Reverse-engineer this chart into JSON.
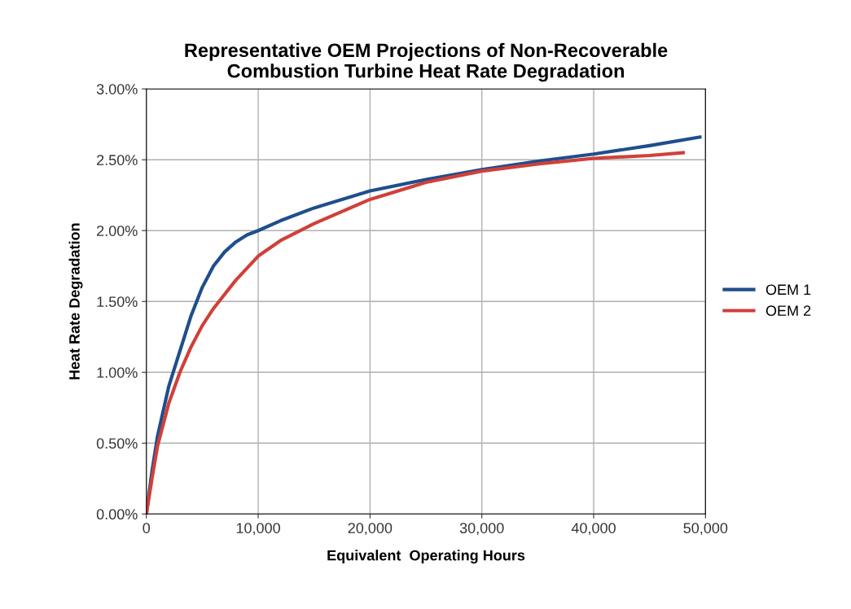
{
  "chart_data": {
    "type": "line",
    "title": "Representative OEM Projections of Non-Recoverable\nCombustion Turbine Heat Rate Degradation",
    "xlabel": "Equivalent  Operating Hours",
    "ylabel": "Heat Rate Degradation",
    "series": [
      {
        "name": "OEM 1",
        "color": "#1f4e8c",
        "x": [
          0,
          500,
          1000,
          2000,
          3000,
          4000,
          5000,
          6000,
          7000,
          8000,
          9000,
          10000,
          12000,
          15000,
          20000,
          25000,
          30000,
          35000,
          40000,
          45000,
          49500
        ],
        "values": [
          0,
          0.3,
          0.55,
          0.9,
          1.15,
          1.4,
          1.6,
          1.75,
          1.85,
          1.92,
          1.97,
          2.0,
          2.07,
          2.16,
          2.28,
          2.36,
          2.43,
          2.49,
          2.54,
          2.6,
          2.66
        ]
      },
      {
        "name": "OEM 2",
        "color": "#d0403a",
        "x": [
          0,
          500,
          1000,
          2000,
          3000,
          4000,
          5000,
          6000,
          7000,
          8000,
          10000,
          12000,
          15000,
          20000,
          25000,
          30000,
          35000,
          40000,
          45000,
          48000
        ],
        "values": [
          0,
          0.25,
          0.48,
          0.78,
          1.0,
          1.18,
          1.33,
          1.45,
          1.55,
          1.65,
          1.82,
          1.93,
          2.05,
          2.22,
          2.34,
          2.42,
          2.47,
          2.51,
          2.53,
          2.55
        ]
      }
    ],
    "xlim": [
      0,
      50000
    ],
    "xticks": [
      0,
      {
        "value": 10000,
        "label": "10,000"
      },
      {
        "value": 20000,
        "label": "20,000"
      },
      {
        "value": 30000,
        "label": "30,000"
      },
      {
        "value": 40000,
        "label": "40,000"
      },
      {
        "value": 50000,
        "label": "50,000"
      }
    ],
    "ylim": [
      0,
      3
    ],
    "yticks": [
      {
        "value": 0,
        "label": "0.00%"
      },
      {
        "value": 0.5,
        "label": "0.50%"
      },
      {
        "value": 1,
        "label": "1.00%"
      },
      {
        "value": 1.5,
        "label": "1.50%"
      },
      {
        "value": 2,
        "label": "2.00%"
      },
      {
        "value": 2.5,
        "label": "2.50%"
      },
      {
        "value": 3,
        "label": "3.00%"
      }
    ],
    "grid": true,
    "legend": "right"
  }
}
